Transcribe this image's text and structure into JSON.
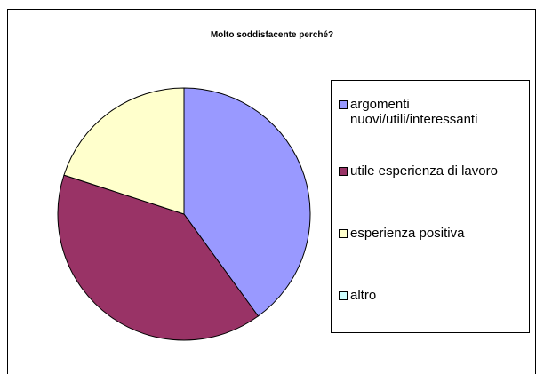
{
  "chart_data": {
    "type": "pie",
    "title": "Molto soddisfacente  perché?",
    "categories": [
      "argomenti nuovi/utili/interessanti",
      "utile esperienza di lavoro",
      "esperienza positiva",
      "altro"
    ],
    "values": [
      40,
      40,
      20,
      0
    ],
    "colors": [
      "#9999ff",
      "#993366",
      "#ffffcc",
      "#ccffff"
    ],
    "legend": "right"
  }
}
